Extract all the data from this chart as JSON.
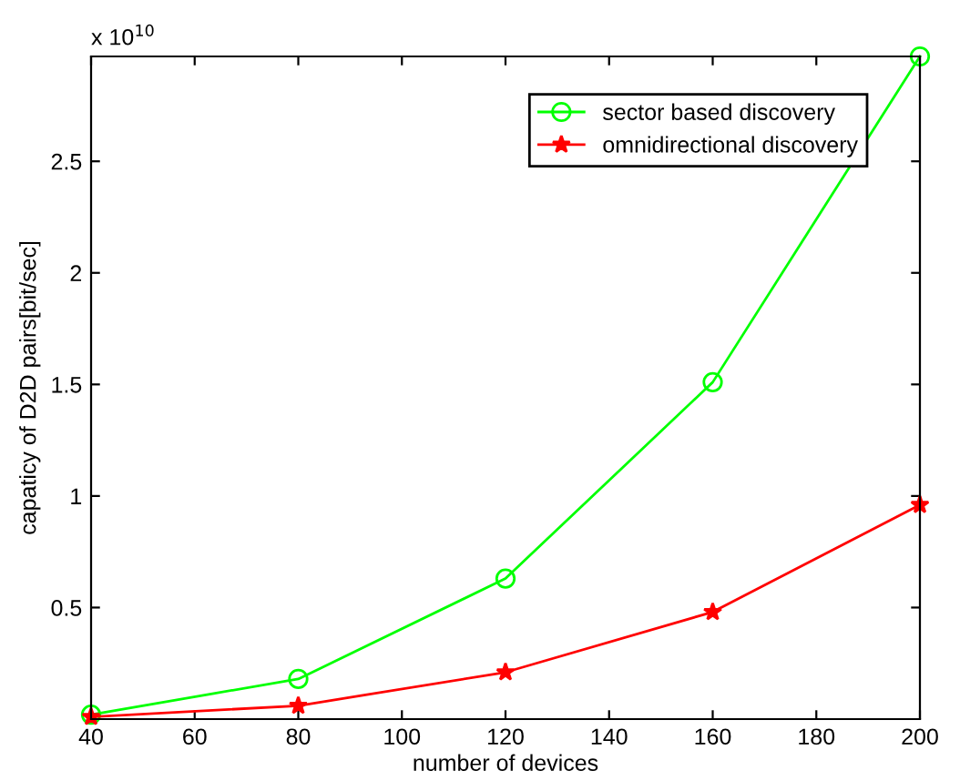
{
  "chart_data": {
    "type": "line",
    "xlabel": "number of devices",
    "ylabel": "capaticy of D2D pairs[bit/sec]",
    "annotations": [
      "x 10$^{10}$"
    ],
    "x": [
      40,
      80,
      120,
      160,
      200
    ],
    "series": [
      {
        "name": "sector based discovery",
        "color": "#00ff00",
        "marker": "circle",
        "values": [
          0.02,
          0.18,
          0.63,
          1.51,
          2.97
        ]
      },
      {
        "name": "omnidirectional discovery",
        "color": "#ff0000",
        "marker": "star",
        "values": [
          0.01,
          0.06,
          0.21,
          0.48,
          0.96
        ]
      }
    ],
    "xlim": [
      40,
      200
    ],
    "xticks": [
      40,
      60,
      80,
      100,
      120,
      140,
      160,
      180,
      200
    ],
    "ylim": [
      0,
      2.97
    ],
    "yticks": [
      0.5,
      1,
      1.5,
      2,
      2.5
    ],
    "grid": false,
    "legend": "top right",
    "line_style": "solid"
  }
}
